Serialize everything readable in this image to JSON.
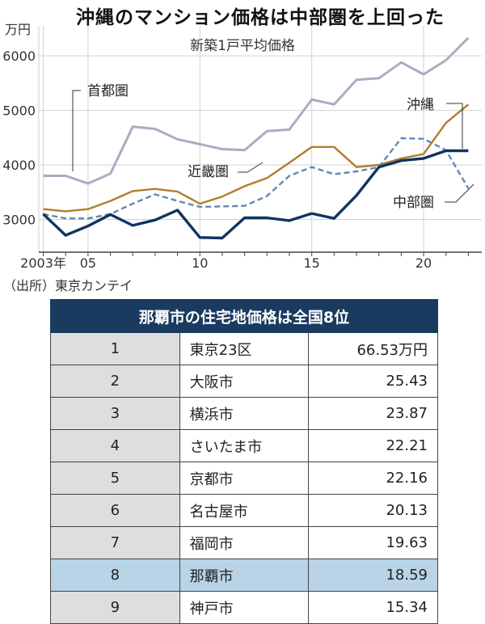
{
  "chart_data": {
    "type": "line",
    "title": "沖縄のマンション価格は中部圏を上回った",
    "subtitle": "新築1戸平均価格",
    "ylabel": "万円",
    "ylim": [
      2400,
      6550
    ],
    "yticks": [
      3000,
      4000,
      5000,
      6000
    ],
    "xlim": [
      2002.8,
      2022.6
    ],
    "xticks": [
      {
        "x": 2003,
        "label": "2003年"
      },
      {
        "x": 2005,
        "label": "05"
      },
      {
        "x": 2010,
        "label": "10"
      },
      {
        "x": 2015,
        "label": "15"
      },
      {
        "x": 2020,
        "label": "20"
      }
    ],
    "grid": true,
    "x": [
      2003,
      2004,
      2005,
      2006,
      2007,
      2008,
      2009,
      2010,
      2011,
      2012,
      2013,
      2014,
      2015,
      2016,
      2017,
      2018,
      2019,
      2020,
      2021,
      2022
    ],
    "series": [
      {
        "name": "首都圏",
        "color": "#a9adc1",
        "style": "solid",
        "values": [
          3800,
          3800,
          3660,
          3840,
          4700,
          4660,
          4470,
          4380,
          4290,
          4270,
          4620,
          4650,
          5200,
          5110,
          5560,
          5590,
          5880,
          5660,
          5920,
          6330
        ]
      },
      {
        "name": "近畿圏",
        "color": "#b07e2c",
        "style": "solid",
        "values": [
          3190,
          3150,
          3190,
          3340,
          3520,
          3560,
          3510,
          3290,
          3420,
          3610,
          3760,
          4040,
          4330,
          4330,
          3960,
          4000,
          4120,
          4200,
          4770,
          5110
        ]
      },
      {
        "name": "中部圏",
        "color": "#5f8ab4",
        "style": "dashed",
        "values": [
          3100,
          3020,
          3020,
          3100,
          3290,
          3460,
          3340,
          3230,
          3240,
          3250,
          3430,
          3800,
          3960,
          3830,
          3880,
          3960,
          4490,
          4480,
          4270,
          3570
        ]
      },
      {
        "name": "沖縄",
        "color": "#0f3561",
        "style": "solid",
        "values": [
          3100,
          2710,
          2880,
          3090,
          2890,
          2990,
          3170,
          2670,
          2660,
          3030,
          3030,
          2980,
          3110,
          3020,
          3440,
          3960,
          4080,
          4120,
          4260,
          4260
        ]
      }
    ]
  },
  "source": "（出所）東京カンテイ",
  "table": {
    "title": "那覇市の住宅地価格は全国8位",
    "highlight_rank": "8",
    "rows": [
      {
        "rank": "1",
        "city": "東京23区",
        "price": "66.53万円"
      },
      {
        "rank": "2",
        "city": "大阪市",
        "price": "25.43"
      },
      {
        "rank": "3",
        "city": "横浜市",
        "price": "23.87"
      },
      {
        "rank": "4",
        "city": "さいたま市",
        "price": "22.21"
      },
      {
        "rank": "5",
        "city": "京都市",
        "price": "22.16"
      },
      {
        "rank": "6",
        "city": "名古屋市",
        "price": "20.13"
      },
      {
        "rank": "7",
        "city": "福岡市",
        "price": "19.63"
      },
      {
        "rank": "8",
        "city": "那覇市",
        "price": "18.59"
      },
      {
        "rank": "9",
        "city": "神戸市",
        "price": "15.34"
      }
    ]
  }
}
